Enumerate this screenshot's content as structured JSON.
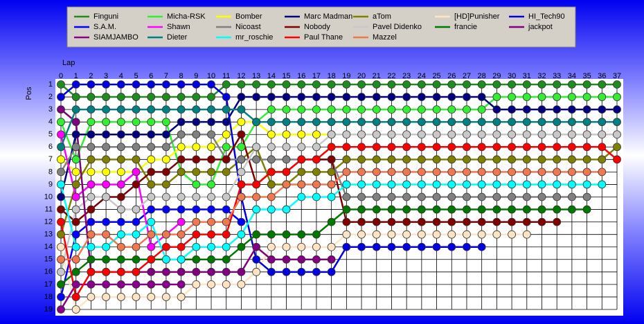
{
  "chart_data": {
    "type": "line",
    "x_label": "Lap",
    "y_label": "Pos",
    "x": [
      0,
      1,
      2,
      3,
      4,
      5,
      6,
      7,
      8,
      9,
      10,
      11,
      12,
      13,
      14,
      15,
      16,
      17,
      18,
      19,
      20,
      21,
      22,
      23,
      24,
      25,
      26,
      27,
      28,
      29,
      30,
      31,
      32,
      33,
      34,
      35,
      36,
      37
    ],
    "xlim": [
      0,
      37
    ],
    "ylim": [
      1,
      19
    ],
    "y_inverted": true,
    "grid": true,
    "yticks": [
      1,
      2,
      3,
      4,
      5,
      6,
      7,
      8,
      9,
      10,
      11,
      12,
      13,
      14,
      15,
      16,
      17,
      18,
      19
    ],
    "series": [
      {
        "name": "Finguni",
        "color": "#1e8c1e",
        "values": [
          1,
          2,
          2,
          2,
          2,
          2,
          2,
          2,
          2,
          2,
          2,
          1,
          1,
          1,
          1,
          1,
          1,
          1,
          1,
          1,
          1,
          1,
          1,
          1,
          1,
          1,
          1,
          1,
          1,
          1,
          1,
          1,
          1,
          1,
          1,
          1,
          1,
          1
        ]
      },
      {
        "name": "Micha-RSK",
        "color": "#33ee33",
        "values": [
          4,
          7,
          4,
          4,
          4,
          4,
          4,
          4,
          8,
          9,
          9,
          6,
          6,
          4,
          3,
          3,
          3,
          3,
          3,
          3,
          3,
          3,
          3,
          3,
          3,
          3,
          3,
          3,
          3,
          2,
          2,
          2,
          2,
          2,
          2,
          2,
          2,
          2
        ]
      },
      {
        "name": "Bomber",
        "color": "#ffff00",
        "values": [
          7,
          8,
          8,
          8,
          8,
          8,
          7,
          7,
          6,
          6,
          6,
          5,
          4,
          4,
          5,
          5,
          5,
          5,
          5,
          null,
          null,
          null,
          null,
          null,
          null,
          null,
          null,
          null,
          null,
          null,
          null,
          null,
          null,
          null,
          null,
          null,
          null,
          null
        ]
      },
      {
        "name": "Marc Madman",
        "color": "#000080",
        "values": [
          10,
          5,
          5,
          5,
          5,
          5,
          5,
          5,
          4,
          4,
          4,
          4,
          2,
          2,
          2,
          2,
          2,
          2,
          2,
          2,
          2,
          2,
          2,
          2,
          2,
          2,
          2,
          2,
          2,
          3,
          3,
          3,
          3,
          3,
          3,
          3,
          3,
          3
        ]
      },
      {
        "name": "aTom",
        "color": "#808000",
        "values": [
          13,
          9,
          7,
          7,
          7,
          7,
          9,
          9,
          8,
          8,
          8,
          8,
          7,
          6,
          9,
          9,
          8,
          8,
          8,
          7,
          7,
          7,
          7,
          7,
          7,
          7,
          7,
          7,
          7,
          7,
          7,
          7,
          7,
          7,
          7,
          7,
          7,
          6
        ]
      },
      {
        "name": "[HD]Punisher",
        "color": "#ffe4c4",
        "values": [
          14,
          19,
          18,
          18,
          18,
          18,
          18,
          18,
          18,
          17,
          17,
          17,
          17,
          16,
          14,
          14,
          14,
          14,
          14,
          13,
          13,
          13,
          13,
          13,
          13,
          13,
          13,
          13,
          13,
          13,
          13,
          13,
          null,
          null,
          null,
          null,
          null,
          null
        ]
      },
      {
        "name": "HI_Tech90",
        "color": "#0000e0",
        "values": [
          2,
          1,
          1,
          1,
          1,
          1,
          1,
          1,
          1,
          1,
          1,
          2,
          10,
          15,
          16,
          16,
          16,
          16,
          16,
          14,
          14,
          14,
          14,
          14,
          14,
          14,
          14,
          14,
          14,
          null,
          null,
          null,
          null,
          null,
          null,
          null,
          null,
          null
        ]
      },
      {
        "name": "S.A.M.",
        "color": "#0000ff",
        "values": [
          18,
          13,
          12,
          12,
          12,
          12,
          11,
          11,
          11,
          11,
          11,
          11,
          12,
          null,
          null,
          null,
          null,
          null,
          null,
          null,
          null,
          null,
          null,
          null,
          null,
          null,
          null,
          null,
          null,
          null,
          null,
          null,
          null,
          null,
          null,
          null,
          null,
          null
        ]
      },
      {
        "name": "Shawn",
        "color": "#ff00ff",
        "values": [
          5,
          10,
          9,
          9,
          9,
          8,
          14,
          13,
          12,
          null,
          null,
          null,
          null,
          null,
          null,
          null,
          null,
          null,
          null,
          null,
          null,
          null,
          null,
          null,
          null,
          null,
          null,
          null,
          null,
          null,
          null,
          null,
          null,
          null,
          null,
          null,
          null,
          null
        ]
      },
      {
        "name": "Nicoast",
        "color": "#808080",
        "values": [
          8,
          6,
          6,
          6,
          6,
          6,
          6,
          6,
          5,
          5,
          5,
          7,
          7,
          7,
          7,
          7,
          7,
          7,
          7,
          10,
          10,
          10,
          10,
          10,
          10,
          10,
          10,
          10,
          10,
          10,
          10,
          10,
          10,
          10,
          10,
          10,
          null,
          null
        ]
      },
      {
        "name": "Nobody",
        "color": "#800000",
        "values": [
          11,
          12,
          11,
          10,
          10,
          9,
          8,
          8,
          7,
          7,
          7,
          7,
          5,
          9,
          8,
          8,
          7,
          7,
          7,
          12,
          12,
          12,
          12,
          12,
          12,
          12,
          12,
          12,
          12,
          12,
          12,
          12,
          12,
          12,
          null,
          null,
          null,
          null
        ]
      },
      {
        "name": "Pavel Didenko",
        "color": "#c8c8c8",
        "values": [
          16,
          11,
          10,
          10,
          11,
          11,
          10,
          10,
          10,
          10,
          10,
          10,
          8,
          6,
          6,
          6,
          6,
          6,
          5,
          5,
          5,
          5,
          5,
          5,
          5,
          5,
          5,
          5,
          5,
          5,
          5,
          5,
          5,
          5,
          5,
          5,
          5,
          5
        ]
      },
      {
        "name": "francie",
        "color": "#007800",
        "values": [
          17,
          16,
          15,
          15,
          15,
          15,
          15,
          15,
          15,
          15,
          15,
          15,
          14,
          13,
          13,
          13,
          13,
          13,
          12,
          11,
          11,
          11,
          11,
          11,
          11,
          11,
          11,
          11,
          11,
          11,
          11,
          11,
          11,
          11,
          11,
          11,
          null,
          null
        ]
      },
      {
        "name": "jackpot",
        "color": "#800080",
        "values": [
          3,
          4,
          16,
          16,
          16,
          16,
          16,
          16,
          16,
          16,
          16,
          16,
          16,
          14,
          15,
          15,
          15,
          15,
          15,
          null,
          null,
          null,
          null,
          null,
          null,
          null,
          null,
          null,
          null,
          null,
          null,
          null,
          null,
          null,
          null,
          null,
          null,
          null
        ]
      },
      {
        "name": "SIAMJAMBO",
        "color": "#8b008b",
        "values": [
          19,
          17,
          17,
          17,
          17,
          17,
          17,
          17,
          17,
          null,
          null,
          null,
          null,
          null,
          null,
          null,
          null,
          null,
          null,
          null,
          null,
          null,
          null,
          null,
          null,
          null,
          null,
          null,
          null,
          null,
          null,
          null,
          null,
          null,
          null,
          null,
          null,
          null
        ]
      },
      {
        "name": "Dieter",
        "color": "#008080",
        "values": [
          6,
          3,
          3,
          3,
          3,
          3,
          3,
          3,
          3,
          3,
          3,
          3,
          3,
          4,
          4,
          4,
          4,
          4,
          4,
          4,
          4,
          4,
          4,
          4,
          4,
          4,
          4,
          4,
          4,
          4,
          4,
          4,
          4,
          4,
          4,
          4,
          4,
          4
        ]
      },
      {
        "name": "mr_roschie",
        "color": "#00ffff",
        "values": [
          9,
          14,
          14,
          14,
          13,
          13,
          12,
          15,
          15,
          14,
          14,
          14,
          13,
          11,
          11,
          11,
          10,
          10,
          10,
          9,
          9,
          9,
          9,
          9,
          9,
          9,
          9,
          9,
          9,
          9,
          9,
          9,
          9,
          9,
          9,
          9,
          9,
          null
        ]
      },
      {
        "name": "Paul Thane",
        "color": "#ff0000",
        "values": [
          12,
          18,
          16,
          16,
          16,
          16,
          15,
          14,
          14,
          13,
          13,
          13,
          9,
          9,
          8,
          8,
          7,
          7,
          6,
          6,
          6,
          6,
          6,
          6,
          6,
          6,
          6,
          6,
          6,
          6,
          6,
          6,
          6,
          6,
          6,
          6,
          6,
          7
        ]
      },
      {
        "name": "Mazzel",
        "color": "#f07850",
        "values": [
          15,
          15,
          13,
          13,
          14,
          14,
          13,
          13,
          13,
          12,
          12,
          12,
          10,
          10,
          10,
          9,
          9,
          9,
          9,
          8,
          8,
          8,
          8,
          8,
          8,
          8,
          8,
          8,
          8,
          8,
          8,
          8,
          8,
          8,
          8,
          8,
          8,
          null
        ]
      }
    ]
  }
}
